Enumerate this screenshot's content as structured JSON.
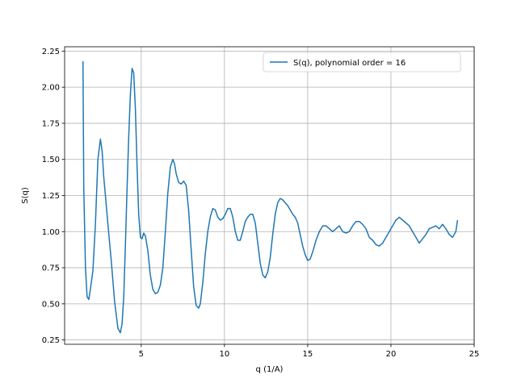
{
  "chart_data": {
    "type": "line",
    "title": "",
    "xlabel": "q (1/A)",
    "ylabel": "S(q)",
    "xlim": [
      0.4,
      25.0
    ],
    "ylim": [
      0.22,
      2.28
    ],
    "xticks": [
      5,
      10,
      15,
      20,
      25
    ],
    "xtick_labels": [
      "5",
      "10",
      "15",
      "20",
      "25"
    ],
    "yticks": [
      0.25,
      0.5,
      0.75,
      1.0,
      1.25,
      1.5,
      1.75,
      2.0,
      2.25
    ],
    "ytick_labels": [
      "0.25",
      "0.50",
      "0.75",
      "1.00",
      "1.25",
      "1.50",
      "1.75",
      "2.00",
      "2.25"
    ],
    "grid": true,
    "legend_position": "top-right",
    "series": [
      {
        "name": "S(q), polynomial order = 16",
        "color": "#1f77b4",
        "x": [
          1.5,
          1.55,
          1.65,
          1.75,
          1.85,
          1.95,
          2.1,
          2.25,
          2.4,
          2.55,
          2.65,
          2.75,
          2.85,
          3.0,
          3.2,
          3.4,
          3.6,
          3.75,
          3.85,
          3.95,
          4.05,
          4.15,
          4.25,
          4.35,
          4.45,
          4.55,
          4.65,
          4.75,
          4.85,
          4.95,
          5.05,
          5.15,
          5.25,
          5.4,
          5.55,
          5.7,
          5.85,
          6.0,
          6.15,
          6.3,
          6.45,
          6.6,
          6.75,
          6.9,
          7.0,
          7.1,
          7.25,
          7.4,
          7.55,
          7.7,
          7.85,
          8.0,
          8.15,
          8.3,
          8.45,
          8.55,
          8.7,
          8.85,
          9.0,
          9.15,
          9.3,
          9.45,
          9.6,
          9.75,
          9.9,
          10.05,
          10.2,
          10.35,
          10.5,
          10.65,
          10.8,
          10.95,
          11.1,
          11.25,
          11.4,
          11.55,
          11.7,
          11.85,
          12.0,
          12.15,
          12.3,
          12.45,
          12.6,
          12.75,
          12.9,
          13.05,
          13.2,
          13.35,
          13.5,
          13.65,
          13.8,
          13.95,
          14.1,
          14.25,
          14.4,
          14.55,
          14.7,
          14.85,
          15.0,
          15.15,
          15.3,
          15.5,
          15.7,
          15.9,
          16.1,
          16.3,
          16.5,
          16.7,
          16.9,
          17.1,
          17.3,
          17.5,
          17.7,
          17.9,
          18.1,
          18.3,
          18.5,
          18.7,
          18.9,
          19.1,
          19.3,
          19.5,
          19.7,
          19.9,
          20.1,
          20.3,
          20.5,
          20.7,
          20.9,
          21.1,
          21.3,
          21.5,
          21.7,
          21.9,
          22.1,
          22.3,
          22.5,
          22.7,
          22.9,
          23.1,
          23.3,
          23.5,
          23.7,
          23.9,
          24.0
        ],
        "y": [
          2.18,
          1.3,
          0.75,
          0.55,
          0.53,
          0.6,
          0.73,
          1.05,
          1.5,
          1.64,
          1.56,
          1.38,
          1.25,
          1.05,
          0.8,
          0.52,
          0.33,
          0.3,
          0.36,
          0.55,
          0.9,
          1.3,
          1.65,
          1.95,
          2.13,
          2.1,
          1.85,
          1.45,
          1.12,
          0.96,
          0.95,
          0.99,
          0.97,
          0.87,
          0.7,
          0.6,
          0.57,
          0.58,
          0.63,
          0.75,
          1.0,
          1.27,
          1.45,
          1.5,
          1.47,
          1.4,
          1.34,
          1.33,
          1.35,
          1.32,
          1.15,
          0.88,
          0.62,
          0.49,
          0.47,
          0.5,
          0.65,
          0.85,
          1.0,
          1.1,
          1.16,
          1.15,
          1.1,
          1.08,
          1.09,
          1.12,
          1.16,
          1.16,
          1.1,
          1.0,
          0.94,
          0.94,
          1.0,
          1.07,
          1.1,
          1.12,
          1.12,
          1.06,
          0.92,
          0.78,
          0.7,
          0.68,
          0.72,
          0.82,
          0.98,
          1.12,
          1.2,
          1.23,
          1.22,
          1.2,
          1.18,
          1.15,
          1.12,
          1.1,
          1.06,
          0.98,
          0.9,
          0.84,
          0.8,
          0.81,
          0.86,
          0.94,
          1.0,
          1.04,
          1.04,
          1.02,
          1.0,
          1.02,
          1.04,
          1.0,
          0.99,
          1.0,
          1.04,
          1.07,
          1.07,
          1.05,
          1.02,
          0.96,
          0.94,
          0.91,
          0.9,
          0.92,
          0.96,
          1.0,
          1.04,
          1.08,
          1.1,
          1.08,
          1.06,
          1.04,
          1.0,
          0.96,
          0.92,
          0.95,
          0.98,
          1.02,
          1.03,
          1.04,
          1.02,
          1.05,
          1.02,
          0.98,
          0.96,
          1.0,
          1.08
        ]
      }
    ]
  }
}
